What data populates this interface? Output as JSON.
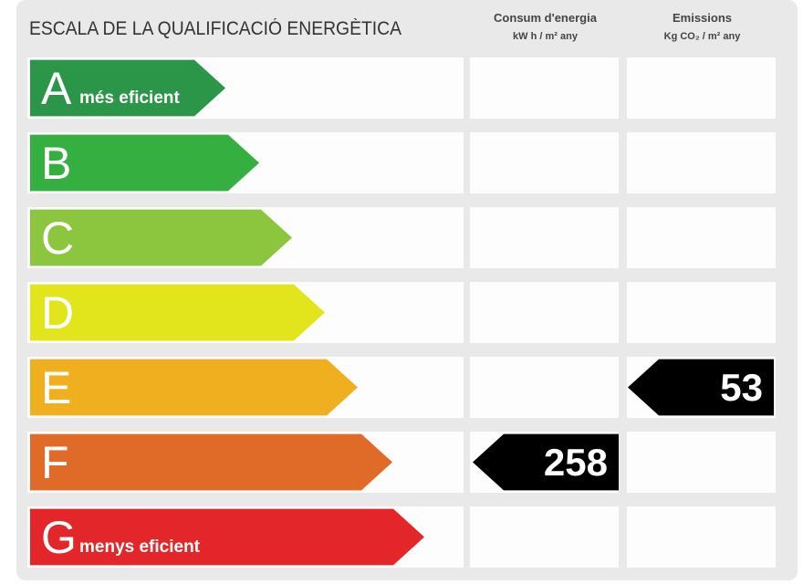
{
  "title": "ESCALA DE LA QUALIFICACIÓ ENERGÈTICA",
  "consumption": {
    "header": "Consum d'energia",
    "unit": "kW h / m² any",
    "value": "258",
    "class": "F"
  },
  "emissions": {
    "header": "Emissions",
    "unit": "Kg CO₂ / m² any",
    "value": "53",
    "class": "E"
  },
  "classes": [
    {
      "letter": "A",
      "note": "més eficient",
      "color": "#2b9647"
    },
    {
      "letter": "B",
      "note": "",
      "color": "#35b040"
    },
    {
      "letter": "C",
      "note": "",
      "color": "#8cc63f"
    },
    {
      "letter": "D",
      "note": "",
      "color": "#e3e51c"
    },
    {
      "letter": "E",
      "note": "",
      "color": "#efaf1f"
    },
    {
      "letter": "F",
      "note": "",
      "color": "#e06a27"
    },
    {
      "letter": "G",
      "note": "menys eficient",
      "color": "#e2262a"
    }
  ]
}
